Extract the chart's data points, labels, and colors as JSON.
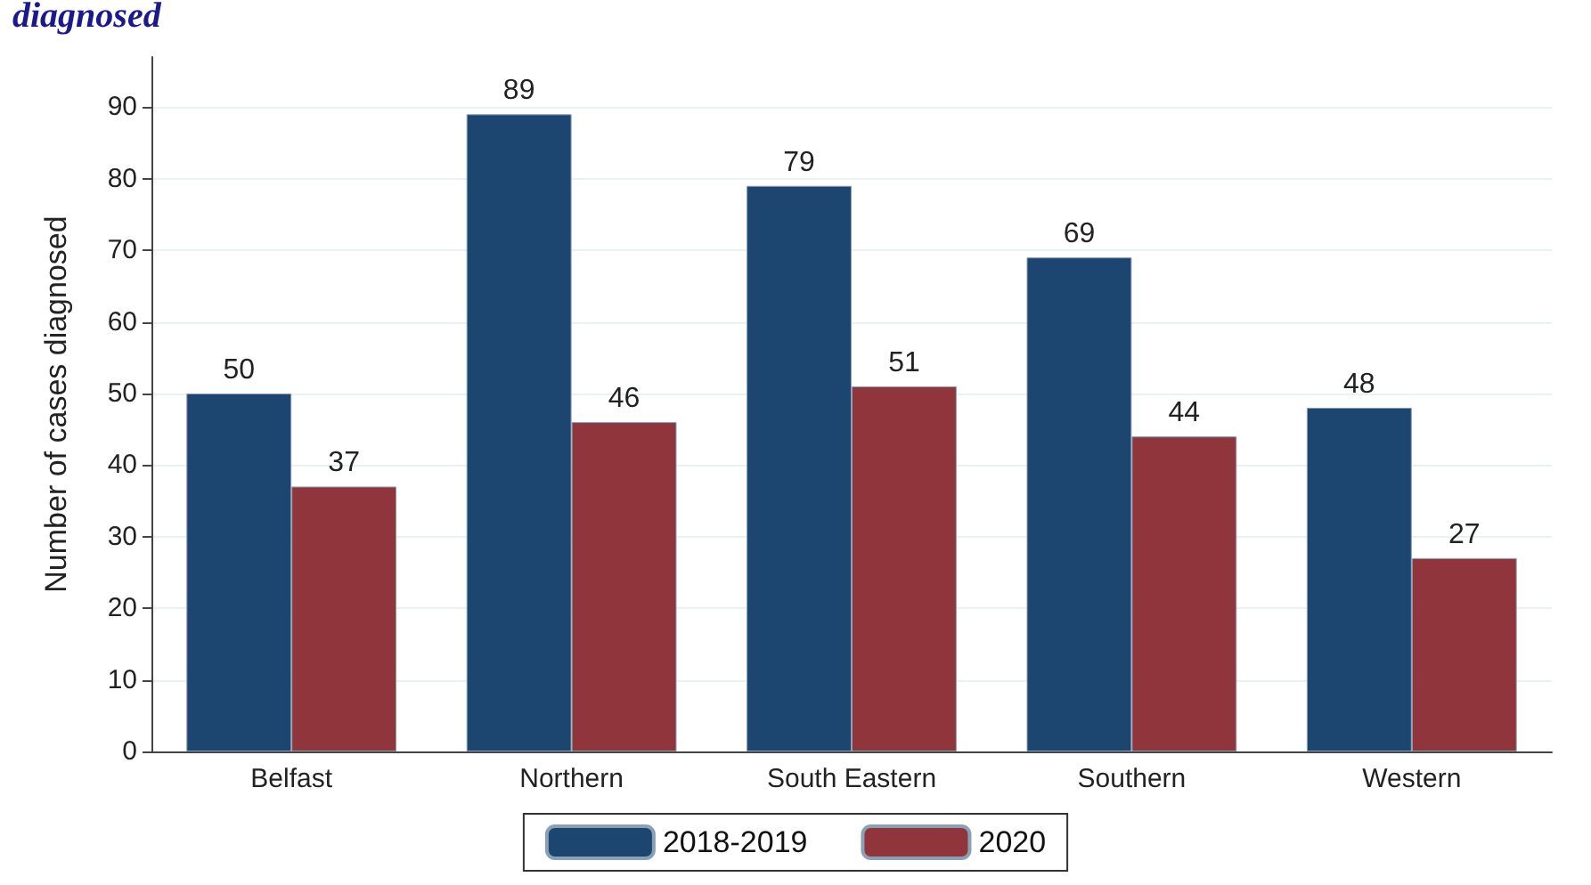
{
  "chart_data": {
    "type": "bar",
    "title": "diagnosed",
    "ylabel": "Number of cases diagnosed",
    "categories": [
      "Belfast",
      "Northern",
      "South Eastern",
      "Southern",
      "Western"
    ],
    "series": [
      {
        "name": "2018-2019",
        "color": "#1c4670",
        "values": [
          50,
          89,
          79,
          69,
          48
        ]
      },
      {
        "name": "2020",
        "color": "#90353b",
        "values": [
          37,
          46,
          51,
          44,
          27
        ]
      }
    ],
    "ylim": [
      0,
      97
    ],
    "yticks": [
      0,
      10,
      20,
      30,
      40,
      50,
      60,
      70,
      80,
      90
    ],
    "grid": "y",
    "legend": "bottom",
    "data_labels": true
  }
}
